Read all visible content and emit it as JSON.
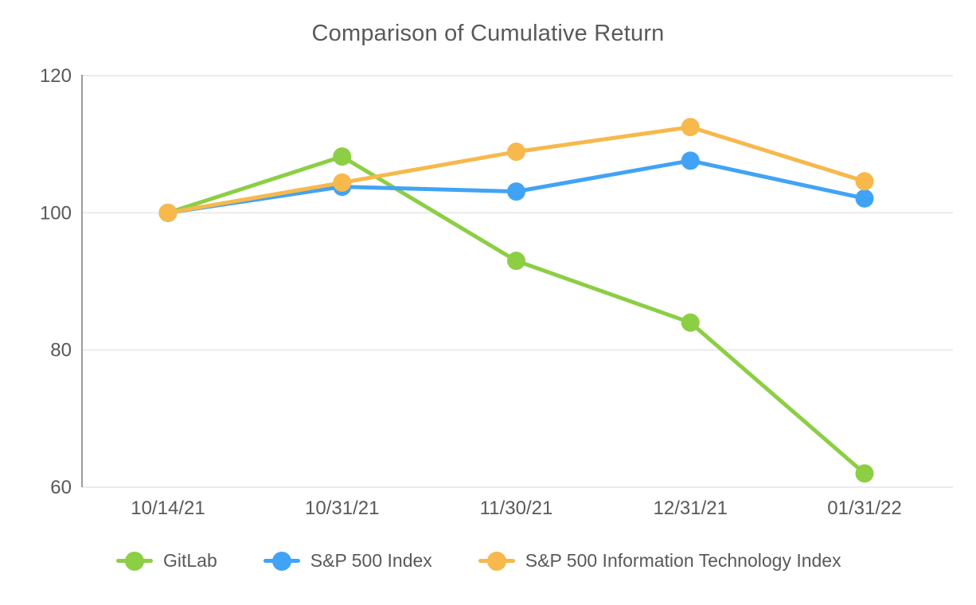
{
  "title": "Comparison of Cumulative Return",
  "chart_data": {
    "type": "line",
    "title": "Comparison of Cumulative Return",
    "xlabel": "",
    "ylabel": "",
    "categories": [
      "10/14/21",
      "10/31/21",
      "11/30/21",
      "12/31/21",
      "01/31/22"
    ],
    "series": [
      {
        "name": "GitLab",
        "color": "#8CCE44",
        "values": [
          100,
          108.2,
          93.0,
          84.0,
          62.0
        ]
      },
      {
        "name": "S&P 500 Index",
        "color": "#41A3F5",
        "values": [
          100,
          103.8,
          103.1,
          107.6,
          102.1
        ]
      },
      {
        "name": "S&P 500 Information Technology Index",
        "color": "#F7B84C",
        "values": [
          100,
          104.4,
          108.9,
          112.5,
          104.6
        ]
      }
    ],
    "yticks": [
      120,
      100,
      80,
      60
    ],
    "ylim": [
      60,
      120
    ],
    "grid": true,
    "legend_position": "bottom",
    "marker": "circle"
  },
  "colors": {
    "text": "#595959",
    "grid": "#ebebeb",
    "axis": "#9b9b9b",
    "background": "#ffffff",
    "gitlab_green": "#8CCE44",
    "sp500_blue": "#41A3F5",
    "sp500_it_orange": "#F7B84C"
  }
}
